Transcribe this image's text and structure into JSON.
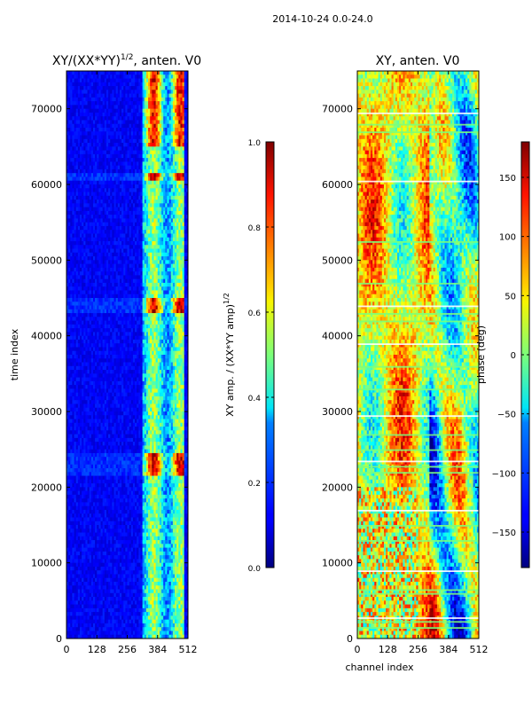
{
  "suptitle": "2014-10-24 0.0-24.0",
  "chart_data": [
    {
      "type": "heatmap",
      "title": "XY/(XX*YY)^1/2, anten. V0",
      "title_main": "XY/(XX*YY)",
      "title_sup": "1/2",
      "title_tail": ", anten. V0",
      "xlabel": "",
      "ylabel": "time index",
      "xlim": [
        0,
        512
      ],
      "ylim": [
        0,
        75000
      ],
      "xticks": [
        0,
        128,
        256,
        384,
        512
      ],
      "yticks": [
        0,
        10000,
        20000,
        30000,
        40000,
        50000,
        60000,
        70000
      ],
      "colormap": "jet",
      "colorbar": {
        "label_main": "XY amp. / (XX*YY amp)",
        "label_sup": "1/2",
        "range": [
          0.0,
          1.0
        ],
        "ticks": [
          "0.0",
          "0.2",
          "0.4",
          "0.6",
          "0.8",
          "1.0"
        ],
        "tick_values": [
          0.0,
          0.2,
          0.4,
          0.6,
          0.8,
          1.0
        ]
      }
    },
    {
      "type": "heatmap",
      "title": "XY, anten. V0",
      "xlabel": "channel index",
      "ylabel": "",
      "xlim": [
        0,
        512
      ],
      "ylim": [
        0,
        75000
      ],
      "xticks": [
        0,
        128,
        256,
        384,
        512
      ],
      "yticks": [
        0,
        10000,
        20000,
        30000,
        40000,
        50000,
        60000,
        70000
      ],
      "colormap": "jet",
      "colorbar": {
        "label": "phase (deg)",
        "range": [
          -180,
          180
        ],
        "ticks": [
          "−150",
          "−100",
          "−50",
          "0",
          "50",
          "100",
          "150"
        ],
        "tick_values": [
          -150,
          -100,
          -50,
          0,
          50,
          100,
          150
        ]
      }
    }
  ]
}
